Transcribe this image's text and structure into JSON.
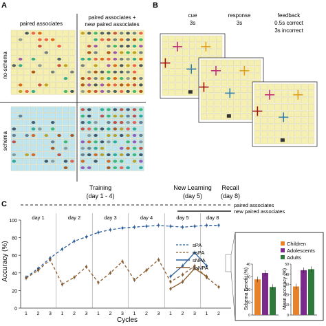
{
  "panels": {
    "a": {
      "letter": "A",
      "col1": "paired associates",
      "col2a": "paired associates +",
      "col2b": "new paired associates",
      "row1": "no-schema",
      "row2": "schema"
    },
    "b": {
      "letter": "B",
      "cue": "cue",
      "cue_time": "3s",
      "response": "response",
      "response_time": "3s",
      "feedback": "feedback",
      "fb1": "0.5s correct",
      "fb2": "3s incorrect"
    },
    "c": {
      "letter": "C",
      "training": "Training",
      "training_days": "(day 1 - 4)",
      "newlearning": "New Learning",
      "newlearning_day": "(day 5)",
      "recall": "Recall",
      "recall_day": "(day 8)",
      "legend_pa": "paired associates",
      "legend_npa": "new paired associates",
      "days": [
        "day 1",
        "day 2",
        "day 3",
        "day 4",
        "day 5",
        "day 8"
      ],
      "cycle_ticks": [
        "1",
        "2",
        "3",
        "1",
        "2",
        "3",
        "1",
        "2",
        "3",
        "1",
        "2",
        "3",
        "1",
        "2",
        "3",
        "1",
        "2"
      ],
      "inset1_ylabel": "Schema Benefit (%)",
      "inset2_ylabel": "Mean accuracy (%)",
      "inset_legend": [
        "Children",
        "Adolescents",
        "Adults"
      ]
    }
  },
  "colors": {
    "grid_cell": "#f6f0b0",
    "schema_cell": "#bfe6f0",
    "children": "#e8822a",
    "adolescents": "#7a2a8a",
    "adults": "#2e7a3a",
    "spa": "#2a5fa0",
    "npa": "#8a5a2a"
  },
  "chart_data": {
    "type": "line",
    "title": "",
    "xlabel": "Cycles",
    "ylabel": "Accuracy (%)",
    "ylim": [
      0,
      100
    ],
    "yticks": [
      0,
      20,
      40,
      60,
      80,
      100
    ],
    "x": [
      1,
      2,
      3,
      4,
      5,
      6,
      7,
      8,
      9,
      10,
      11,
      12,
      13,
      14,
      15,
      16,
      17
    ],
    "series": [
      {
        "name": "sPA",
        "style": "dashed",
        "color": "#2a5fa0",
        "values": [
          35,
          45,
          57,
          67,
          76,
          81,
          86,
          89,
          91,
          92,
          93,
          94,
          93,
          92,
          93,
          94,
          94
        ]
      },
      {
        "name": "nsPA",
        "style": "dashed",
        "color": "#8a5a2a",
        "values": [
          34,
          43,
          55,
          27,
          35,
          47,
          29,
          40,
          53,
          32,
          43,
          55,
          30,
          38,
          48,
          35,
          24
        ]
      },
      {
        "name": "sNPA",
        "style": "solid",
        "color": "#2a5fa0",
        "values": [
          null,
          null,
          null,
          null,
          null,
          null,
          null,
          null,
          null,
          null,
          null,
          null,
          36,
          48,
          63,
          48,
          null
        ]
      },
      {
        "name": "nsNPA",
        "style": "solid",
        "color": "#8a5a2a",
        "values": [
          null,
          null,
          null,
          null,
          null,
          null,
          null,
          null,
          null,
          null,
          null,
          null,
          22,
          30,
          45,
          36,
          null
        ]
      }
    ],
    "insets": [
      {
        "ylabel": "Schema Benefit (%)",
        "ylim": [
          0,
          40
        ],
        "values": {
          "Children": 28,
          "Adolescents": 33,
          "Adults": 22
        }
      },
      {
        "ylabel": "Mean accuracy (%)",
        "ylim": [
          0,
          50
        ],
        "values": {
          "Children": 28,
          "Adolescents": 44,
          "Adults": 45
        }
      }
    ]
  }
}
